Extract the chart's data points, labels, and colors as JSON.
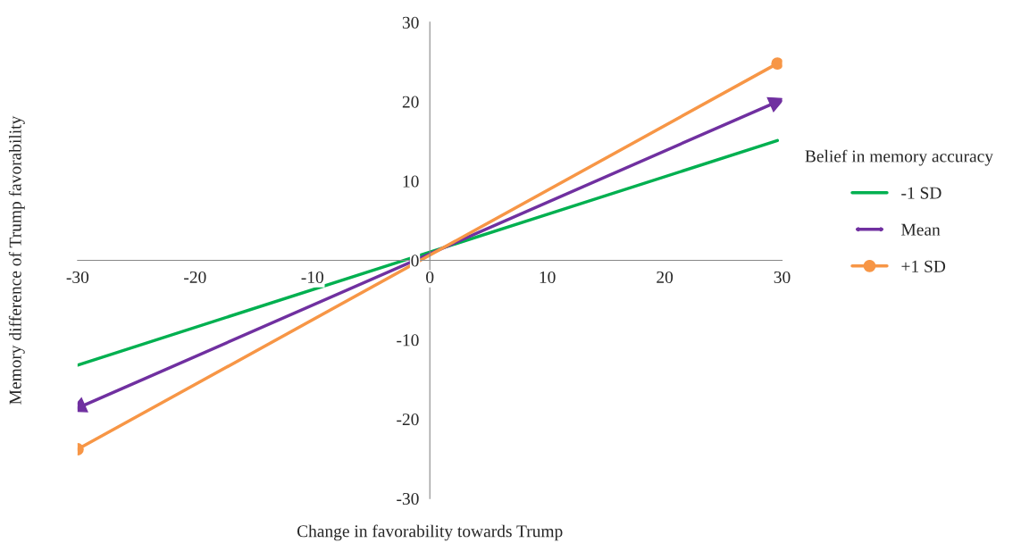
{
  "chart_data": {
    "type": "line",
    "xlabel": "Change in favorability towards Trump",
    "ylabel": "Memory difference of Trump favorability",
    "legend_title": "Belief in memory accuracy",
    "legend": "right",
    "grid": false,
    "x": [
      -30,
      29.6
    ],
    "xlim": [
      -30,
      30
    ],
    "ylim": [
      -30,
      30
    ],
    "xticks": [
      -30,
      -20,
      -10,
      0,
      10,
      20,
      30
    ],
    "yticks": [
      -30,
      -20,
      -10,
      0,
      10,
      20,
      30
    ],
    "series": [
      {
        "name": "-1 SD",
        "color": "#00b050",
        "values": [
          -13.2,
          15.1
        ],
        "marker": "none"
      },
      {
        "name": "Mean",
        "color": "#7030a0",
        "values": [
          -18.6,
          20.0
        ],
        "marker": "triangle"
      },
      {
        "name": "+1 SD",
        "color": "#f79646",
        "values": [
          -23.8,
          24.8
        ],
        "marker": "circle"
      }
    ]
  }
}
